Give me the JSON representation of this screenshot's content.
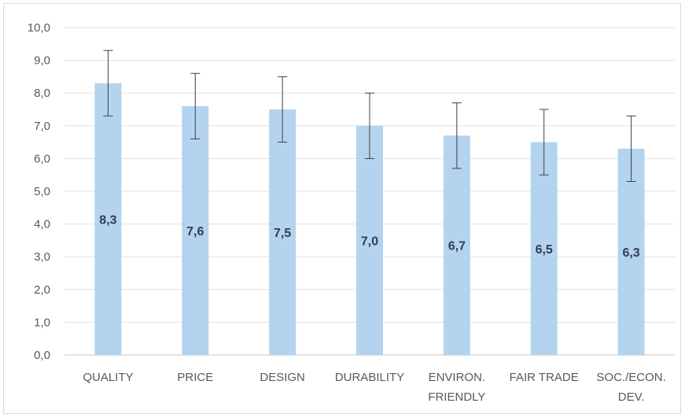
{
  "chart_data": {
    "type": "bar",
    "categories": [
      [
        "QUALITY"
      ],
      [
        "PRICE"
      ],
      [
        "DESIGN"
      ],
      [
        "DURABILITY"
      ],
      [
        "ENVIRON.",
        "FRIENDLY"
      ],
      [
        "FAIR TRADE"
      ],
      [
        "SOC./ECON.",
        "DEV."
      ]
    ],
    "values": [
      8.3,
      7.6,
      7.5,
      7.0,
      6.7,
      6.5,
      6.3
    ],
    "value_labels": [
      "8,3",
      "7,6",
      "7,5",
      "7,0",
      "6,7",
      "6,5",
      "6,3"
    ],
    "error": [
      1.0,
      1.0,
      1.0,
      1.0,
      1.0,
      1.0,
      1.0
    ],
    "ylim": [
      0,
      10
    ],
    "yticks": [
      "0,0",
      "1,0",
      "2,0",
      "3,0",
      "4,0",
      "5,0",
      "6,0",
      "7,0",
      "8,0",
      "9,0",
      "10,0"
    ],
    "title": "",
    "xlabel": "",
    "ylabel": "",
    "grid": true,
    "bar_color": "#b4d3ee",
    "grid_color": "#e0e0e0",
    "error_bar_color": "#404040"
  }
}
